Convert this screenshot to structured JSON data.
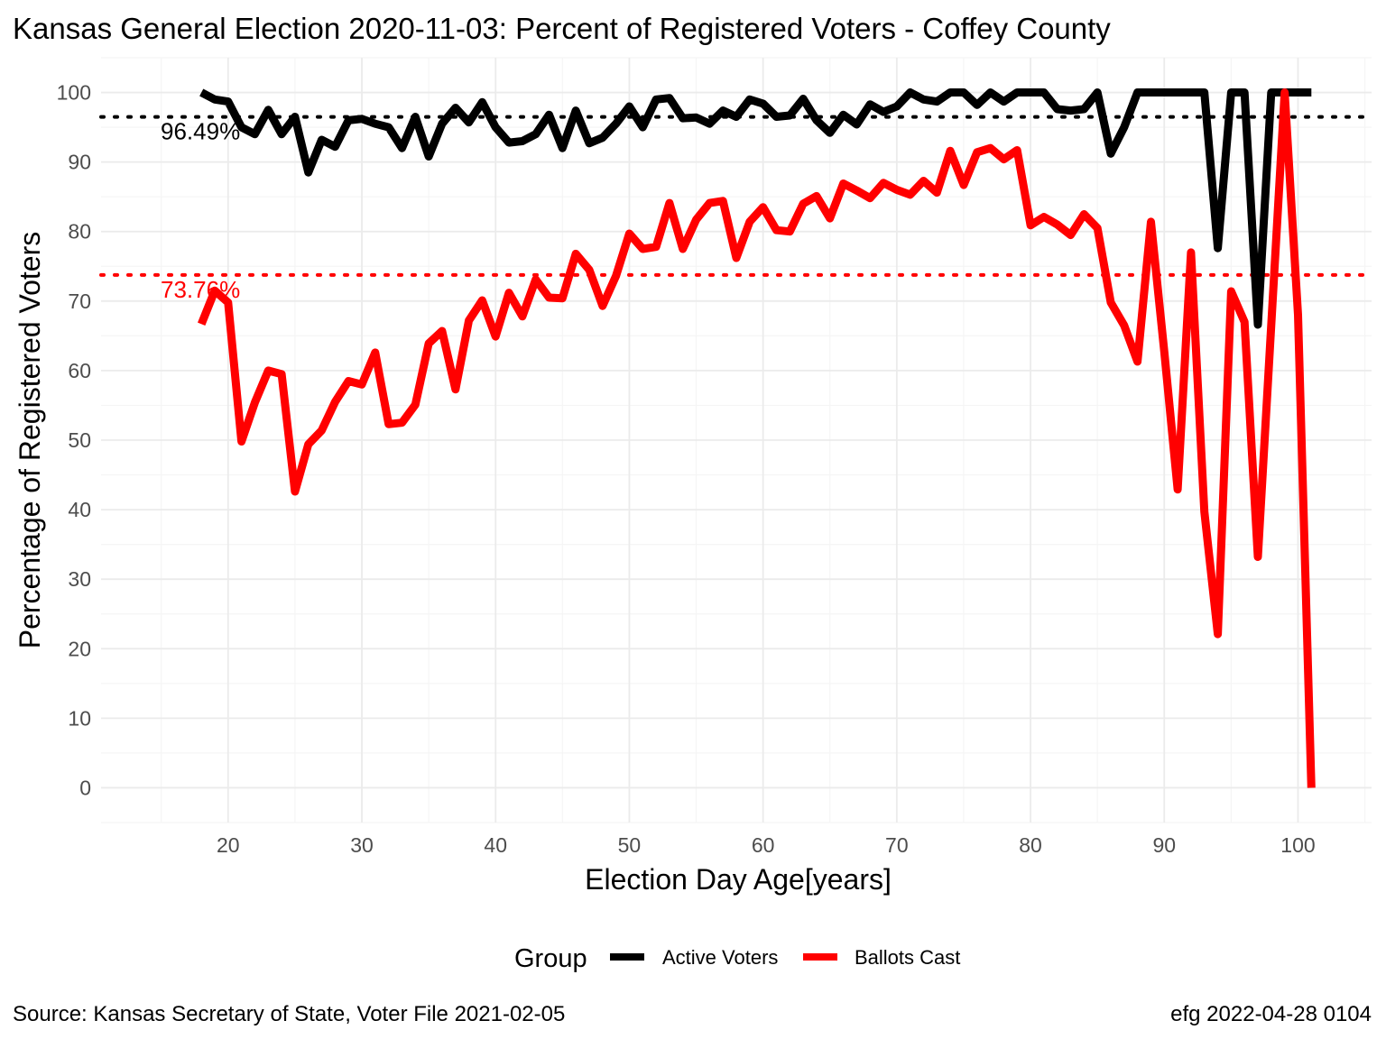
{
  "colors": {
    "active": "#000000",
    "ballots": "#ff0000",
    "grid_major": "#ebebeb",
    "grid_minor": "#f5f5f5",
    "tick_text": "#4d4d4d"
  },
  "chart_data": {
    "type": "line",
    "title": "Kansas General Election 2020-11-03:  Percent of Registered Voters - Coffey County",
    "xlabel": "Election Day Age[years]",
    "ylabel": "Percentage of Registered Voters",
    "xlim": [
      10.5,
      105.5
    ],
    "ylim": [
      -5,
      105
    ],
    "x_ticks": [
      20,
      30,
      40,
      50,
      60,
      70,
      80,
      90,
      100
    ],
    "y_ticks": [
      0,
      10,
      20,
      30,
      40,
      50,
      60,
      70,
      80,
      90,
      100
    ],
    "grid": true,
    "legend": {
      "title": "Group",
      "position": "bottom"
    },
    "x": [
      18,
      19,
      20,
      21,
      22,
      23,
      24,
      25,
      26,
      27,
      28,
      29,
      30,
      31,
      32,
      33,
      34,
      35,
      36,
      37,
      38,
      39,
      40,
      41,
      42,
      43,
      44,
      45,
      46,
      47,
      48,
      49,
      50,
      51,
      52,
      53,
      54,
      55,
      56,
      57,
      58,
      59,
      60,
      61,
      62,
      63,
      64,
      65,
      66,
      67,
      68,
      69,
      70,
      71,
      72,
      73,
      74,
      75,
      76,
      77,
      78,
      79,
      80,
      81,
      82,
      83,
      84,
      85,
      86,
      87,
      88,
      89,
      90,
      91,
      92,
      93,
      94,
      95,
      96,
      97,
      98,
      99,
      100,
      101
    ],
    "series": [
      {
        "name": "Active Voters",
        "color": "#000000",
        "reference": 96.49,
        "reference_label": "96.49%",
        "values": [
          100,
          99,
          98.7,
          95,
          94,
          97.5,
          94,
          96.5,
          88.5,
          93.2,
          92.2,
          96,
          96.2,
          95.5,
          95,
          92,
          96.5,
          90.8,
          95.5,
          97.8,
          95.7,
          98.6,
          95,
          92.8,
          93,
          94,
          96.8,
          92,
          97.4,
          92.7,
          93.5,
          95.5,
          98,
          95,
          99,
          99.2,
          96.3,
          96.4,
          95.5,
          97.4,
          96.5,
          99,
          98.4,
          96.5,
          96.7,
          99.1,
          96,
          94.2,
          96.8,
          95.4,
          98.3,
          97.2,
          98,
          100,
          99,
          98.7,
          100,
          100,
          98.2,
          100,
          98.7,
          100,
          100,
          100,
          97.6,
          97.4,
          97.6,
          100,
          91.2,
          95,
          100,
          100,
          100,
          100,
          100,
          100,
          77.6,
          100,
          100,
          66.6,
          100,
          100,
          100,
          100
        ]
      },
      {
        "name": "Ballots Cast",
        "color": "#ff0000",
        "reference": 73.76,
        "reference_label": "73.76%",
        "values": [
          66.7,
          71.5,
          69.8,
          49.8,
          55.4,
          60,
          59.5,
          42.6,
          49.4,
          51.4,
          55.5,
          58.5,
          58,
          62.6,
          52.3,
          52.5,
          55.1,
          63.9,
          65.7,
          57.3,
          67.2,
          70.1,
          64.9,
          71.2,
          67.8,
          73.1,
          70.5,
          70.4,
          76.8,
          74.5,
          69.3,
          73.6,
          79.7,
          77.5,
          77.8,
          84.1,
          77.5,
          81.7,
          84.1,
          84.4,
          76.2,
          81.4,
          83.5,
          80.2,
          80,
          84,
          85.1,
          81.9,
          86.9,
          85.9,
          84.8,
          87,
          86,
          85.3,
          87.3,
          85.6,
          91.6,
          86.7,
          91.4,
          92,
          90.4,
          91.7,
          80.9,
          82.1,
          81,
          79.5,
          82.5,
          80.5,
          69.8,
          66.5,
          61.3,
          81.4,
          62.7,
          42.9,
          77,
          39.7,
          22.1,
          71.4,
          67,
          33.2,
          66.5,
          100,
          68,
          0
        ]
      }
    ]
  },
  "captions": {
    "source": "Source:  Kansas Secretary of State, Voter File  2021-02-05",
    "stamp": "efg 2022-04-28 0104"
  }
}
